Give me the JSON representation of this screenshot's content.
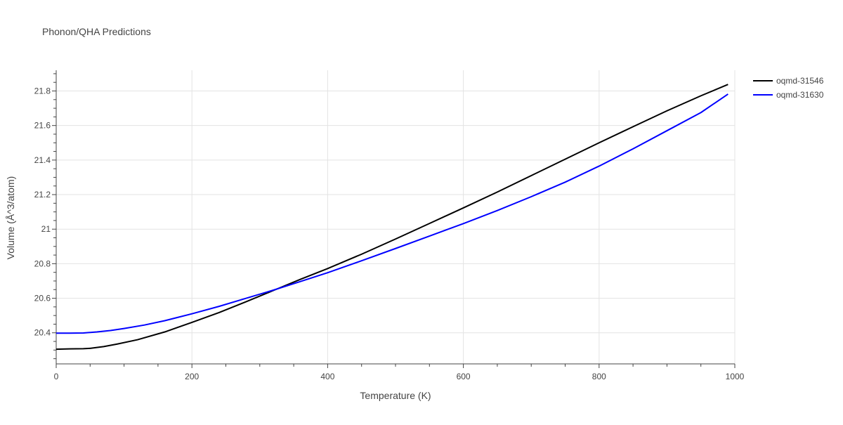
{
  "chart_data": {
    "type": "line",
    "title": "Phonon/QHA Predictions",
    "xlabel": "Temperature (K)",
    "ylabel": "Volume (Å^3/atom)",
    "xlim": [
      0,
      1000
    ],
    "ylim": [
      20.22,
      21.92
    ],
    "x_ticks": [
      0,
      200,
      400,
      600,
      800,
      1000
    ],
    "x_tick_labels": [
      "0",
      "200",
      "400",
      "600",
      "800",
      "1000"
    ],
    "y_ticks": [
      20.4,
      20.6,
      20.8,
      21.0,
      21.2,
      21.4,
      21.6,
      21.8
    ],
    "y_tick_labels": [
      "20.4",
      "20.6",
      "20.8",
      "21",
      "21.2",
      "21.4",
      "21.6",
      "21.8"
    ],
    "grid": true,
    "legend_position": "top-right",
    "series": [
      {
        "name": "oqmd-31546",
        "color": "#000000",
        "x": [
          0,
          20,
          40,
          50,
          70,
          90,
          120,
          160,
          200,
          240,
          280,
          320,
          360,
          400,
          450,
          500,
          550,
          600,
          650,
          700,
          750,
          800,
          850,
          900,
          950,
          990
        ],
        "y": [
          20.305,
          20.307,
          20.308,
          20.31,
          20.32,
          20.335,
          20.36,
          20.405,
          20.46,
          20.517,
          20.58,
          20.645,
          20.71,
          20.772,
          20.855,
          20.943,
          21.033,
          21.123,
          21.215,
          21.31,
          21.405,
          21.5,
          21.593,
          21.685,
          21.772,
          21.838
        ]
      },
      {
        "name": "oqmd-31630",
        "color": "#0000ff",
        "x": [
          0,
          20,
          40,
          60,
          80,
          100,
          130,
          160,
          200,
          240,
          280,
          320,
          360,
          400,
          450,
          500,
          550,
          600,
          650,
          700,
          750,
          800,
          850,
          900,
          950,
          990
        ],
        "y": [
          20.398,
          20.398,
          20.399,
          20.405,
          20.413,
          20.425,
          20.445,
          20.47,
          20.51,
          20.553,
          20.6,
          20.647,
          20.697,
          20.748,
          20.817,
          20.888,
          20.96,
          21.032,
          21.108,
          21.188,
          21.272,
          21.365,
          21.465,
          21.57,
          21.675,
          21.782
        ]
      }
    ]
  }
}
